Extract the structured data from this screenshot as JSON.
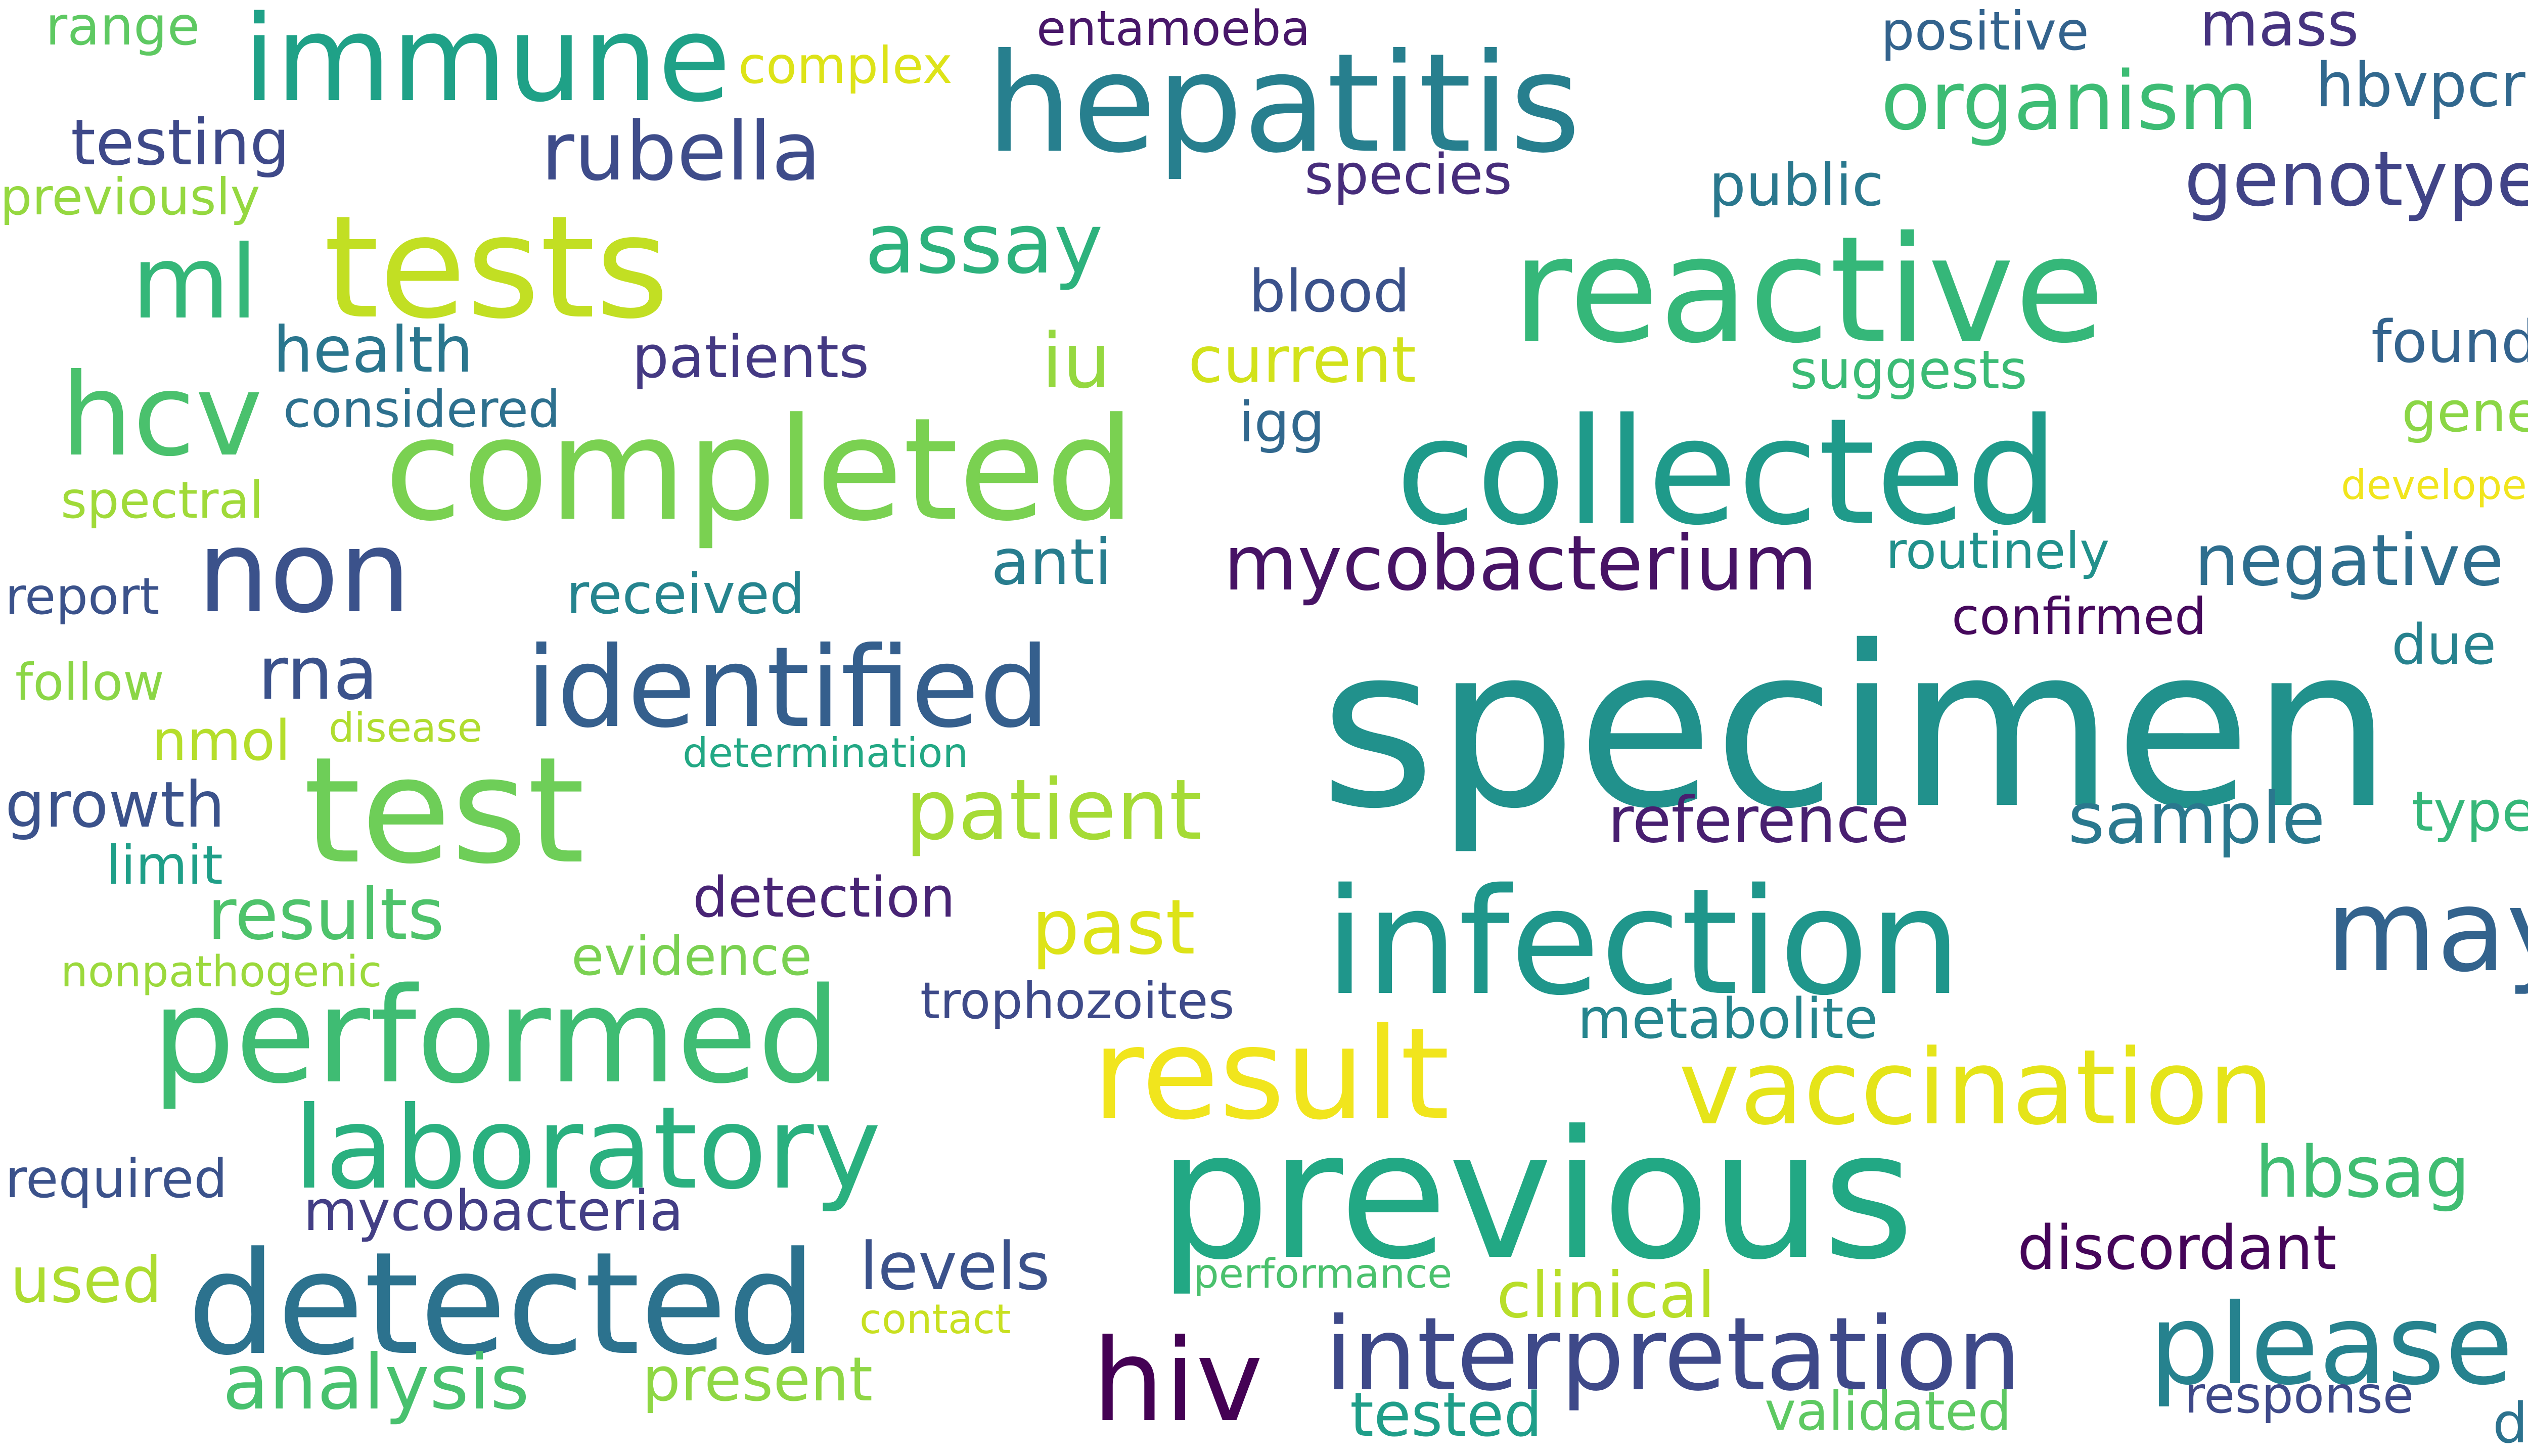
{
  "words": [
    {
      "text": "specimen",
      "color": "#21918c"
    },
    {
      "text": "previous",
      "color": "#22a884"
    },
    {
      "text": "infection",
      "color": "#1f968b"
    },
    {
      "text": "collected",
      "color": "#1f9a8a"
    },
    {
      "text": "reactive",
      "color": "#35b779"
    },
    {
      "text": "hepatitis",
      "color": "#277f8e"
    },
    {
      "text": "completed",
      "color": "#7ad151"
    },
    {
      "text": "test",
      "color": "#6ece58"
    },
    {
      "text": "tests",
      "color": "#c2df23"
    },
    {
      "text": "detected",
      "color": "#2c728e"
    },
    {
      "text": "performed",
      "color": "#3fbc73"
    },
    {
      "text": "result",
      "color": "#f1e51d"
    },
    {
      "text": "laboratory",
      "color": "#2ab07f"
    },
    {
      "text": "vaccination",
      "color": "#e5e419"
    },
    {
      "text": "please",
      "color": "#26828e"
    },
    {
      "text": "interpretation",
      "color": "#3e4989"
    },
    {
      "text": "identified",
      "color": "#355f8d"
    },
    {
      "text": "immune",
      "color": "#1fa187"
    },
    {
      "text": "non",
      "color": "#3b528b"
    },
    {
      "text": "may",
      "color": "#33638d"
    },
    {
      "text": "hcv",
      "color": "#4ac16d"
    },
    {
      "text": "ml",
      "color": "#35b779"
    },
    {
      "text": "hiv",
      "color": "#440154"
    },
    {
      "text": "organism",
      "color": "#3dbc74"
    },
    {
      "text": "mycobacterium",
      "color": "#471365"
    },
    {
      "text": "rubella",
      "color": "#3e4c8a"
    },
    {
      "text": "patient",
      "color": "#a5db36"
    },
    {
      "text": "assay",
      "color": "#2db27d"
    },
    {
      "text": "genotype",
      "color": "#414487"
    },
    {
      "text": "past",
      "color": "#dde318"
    },
    {
      "text": "sample",
      "color": "#2a788e"
    },
    {
      "text": "reference",
      "color": "#481f70"
    },
    {
      "text": "results",
      "color": "#4ec36b"
    },
    {
      "text": "analysis",
      "color": "#48c16e"
    },
    {
      "text": "rna",
      "color": "#3b528b"
    },
    {
      "text": "iu",
      "color": "#95d840"
    },
    {
      "text": "negative",
      "color": "#2e6e8e"
    },
    {
      "text": "hbsag",
      "color": "#40bd72"
    },
    {
      "text": "levels",
      "color": "#3b528b"
    },
    {
      "text": "discordant",
      "color": "#450559"
    },
    {
      "text": "present",
      "color": "#8fd744"
    },
    {
      "text": "clinical",
      "color": "#b8de29"
    },
    {
      "text": "tested",
      "color": "#1f9e89"
    },
    {
      "text": "mass",
      "color": "#46337f"
    },
    {
      "text": "hbvpcr",
      "color": "#31688e"
    },
    {
      "text": "testing",
      "color": "#3e4989"
    },
    {
      "text": "health",
      "color": "#2a768e"
    },
    {
      "text": "growth",
      "color": "#3b528b"
    },
    {
      "text": "patients",
      "color": "#443983"
    },
    {
      "text": "blood",
      "color": "#3b528b"
    },
    {
      "text": "current",
      "color": "#d2e21b"
    },
    {
      "text": "species",
      "color": "#472d7b"
    },
    {
      "text": "public",
      "color": "#2a788e"
    },
    {
      "text": "anti",
      "color": "#287d8e"
    },
    {
      "text": "detection",
      "color": "#482475"
    },
    {
      "text": "evidence",
      "color": "#7ad151"
    },
    {
      "text": "received",
      "color": "#25848e"
    },
    {
      "text": "trophozoites",
      "color": "#3e4a89"
    },
    {
      "text": "metabolite",
      "color": "#25858e"
    },
    {
      "text": "mycobacteria",
      "color": "#433e85"
    },
    {
      "text": "required",
      "color": "#3b528b"
    },
    {
      "text": "used",
      "color": "#addc30"
    },
    {
      "text": "validated",
      "color": "#5ec962"
    },
    {
      "text": "response",
      "color": "#3e4989"
    },
    {
      "text": "dr",
      "color": "#2c728e"
    },
    {
      "text": "found",
      "color": "#33638d"
    },
    {
      "text": "gene",
      "color": "#8bd646"
    },
    {
      "text": "due",
      "color": "#26828e"
    },
    {
      "text": "type",
      "color": "#35b779"
    },
    {
      "text": "confirmed",
      "color": "#46085c"
    },
    {
      "text": "routinely",
      "color": "#21918c"
    },
    {
      "text": "suggests",
      "color": "#3bbb75"
    },
    {
      "text": "igg",
      "color": "#31688e"
    },
    {
      "text": "positive",
      "color": "#33638d"
    },
    {
      "text": "entamoeba",
      "color": "#481769"
    },
    {
      "text": "complex",
      "color": "#dde318"
    },
    {
      "text": "range",
      "color": "#5ec962"
    },
    {
      "text": "previously",
      "color": "#95d840"
    },
    {
      "text": "considered",
      "color": "#2d708e"
    },
    {
      "text": "spectral",
      "color": "#a0da39"
    },
    {
      "text": "report",
      "color": "#3b528b"
    },
    {
      "text": "follow",
      "color": "#8bd646"
    },
    {
      "text": "nmol",
      "color": "#b5de2b"
    },
    {
      "text": "disease",
      "color": "#b0dd2f"
    },
    {
      "text": "determination",
      "color": "#22a884"
    },
    {
      "text": "limit",
      "color": "#1f9f88"
    },
    {
      "text": "nonpathogenic",
      "color": "#9bd93c"
    },
    {
      "text": "performance",
      "color": "#4ac16d"
    },
    {
      "text": "contact",
      "color": "#c8e020"
    },
    {
      "text": "developed",
      "color": "#f1e51d"
    }
  ]
}
